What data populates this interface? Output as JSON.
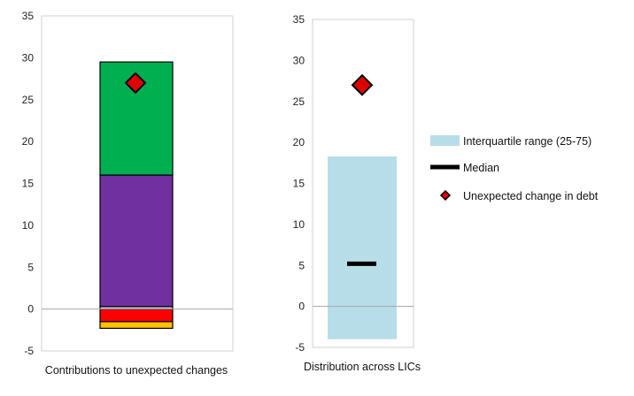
{
  "chart_data": [
    {
      "type": "bar",
      "stacked": true,
      "xlabel": "Contributions to unexpected changes",
      "ylim": [
        -5,
        35
      ],
      "yticks": [
        -5,
        0,
        5,
        10,
        15,
        20,
        25,
        30,
        35
      ],
      "grid": false,
      "segments": [
        {
          "from": -2.3,
          "to": -1.5,
          "color": "#FFC000"
        },
        {
          "from": -1.5,
          "to": 0.0,
          "color": "#FF0000"
        },
        {
          "from": 0.0,
          "to": 0.3,
          "color": "#C8C0E0"
        },
        {
          "from": 0.3,
          "to": 16.0,
          "color": "#7030A0"
        },
        {
          "from": 16.0,
          "to": 29.5,
          "color": "#00B050"
        }
      ],
      "marker": {
        "name": "Unexpected change in debt",
        "value": 27.0,
        "color": "#E00000"
      }
    },
    {
      "type": "box",
      "xlabel": "Distribution across LICs",
      "ylim": [
        -5,
        35
      ],
      "yticks": [
        -5,
        0,
        5,
        10,
        15,
        20,
        25,
        30,
        35
      ],
      "grid": false,
      "interquartile": {
        "name": "Interquartile range (25-75)",
        "low": -4.0,
        "high": 18.3,
        "color": "#B7DEE8"
      },
      "median": {
        "name": "Median",
        "value": 5.2,
        "color": "#000000"
      },
      "marker": {
        "name": "Unexpected change in debt",
        "value": 27.0,
        "color": "#E00000"
      },
      "legend": {
        "placement": "right",
        "entries": [
          "Interquartile range (25-75)",
          "Median",
          "Unexpected change in debt"
        ]
      }
    }
  ]
}
